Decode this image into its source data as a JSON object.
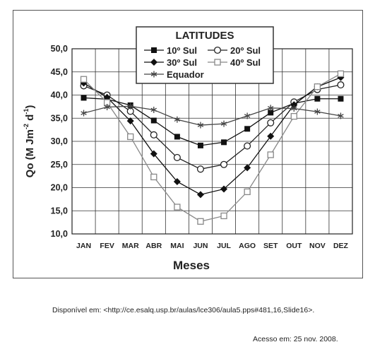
{
  "chart_data": {
    "type": "line",
    "categories": [
      "JAN",
      "FEV",
      "MAR",
      "ABR",
      "MAI",
      "JUN",
      "JUL",
      "AGO",
      "SET",
      "OUT",
      "NOV",
      "DEZ"
    ],
    "xlabel": "Meses",
    "ylabel": "Qo (M Jm",
    "ylabel_sup1": "-2",
    "ylabel_mid": " d",
    "ylabel_sup2": "-1",
    "ylabel_end": ")",
    "ylim": [
      10,
      50
    ],
    "yticks": [
      "10,0",
      "15,0",
      "20,0",
      "25,0",
      "30,0",
      "35,0",
      "40,0",
      "45,0",
      "50,0"
    ],
    "grid": true,
    "legend_title": "LATITUDES",
    "legend_position": "top-center",
    "series": [
      {
        "name": "10º Sul",
        "marker": "square-filled",
        "color": "#111111",
        "values": [
          39.4,
          39.1,
          37.8,
          34.5,
          31.0,
          29.1,
          29.8,
          32.7,
          36.2,
          38.2,
          39.2,
          39.2
        ]
      },
      {
        "name": "20º Sul",
        "marker": "circle-open",
        "color": "#222222",
        "values": [
          42.0,
          40.0,
          36.5,
          31.4,
          26.5,
          24.0,
          25.0,
          29.0,
          34.0,
          38.5,
          41.2,
          42.2
        ]
      },
      {
        "name": "30º Sul",
        "marker": "diamond-filled",
        "color": "#111111",
        "values": [
          42.6,
          39.5,
          34.4,
          27.3,
          21.3,
          18.5,
          19.7,
          24.3,
          31.1,
          37.9,
          41.8,
          43.8
        ]
      },
      {
        "name": "40º Sul",
        "marker": "square-open",
        "color": "#888888",
        "values": [
          43.4,
          38.4,
          31.0,
          22.3,
          15.8,
          12.7,
          13.9,
          19.1,
          27.1,
          35.4,
          41.8,
          44.6
        ]
      },
      {
        "name": "Equador",
        "marker": "star",
        "color": "#444444",
        "values": [
          36.1,
          37.4,
          37.6,
          36.8,
          34.7,
          33.5,
          33.8,
          35.5,
          37.2,
          37.1,
          36.4,
          35.5
        ]
      }
    ]
  },
  "footer": {
    "source": "Disponível em: <http://ce.esalq.usp.br/aulas/lce306/aula5.pps#481,16,Slide16>.",
    "access": "Acesso em: 25 nov. 2008."
  }
}
